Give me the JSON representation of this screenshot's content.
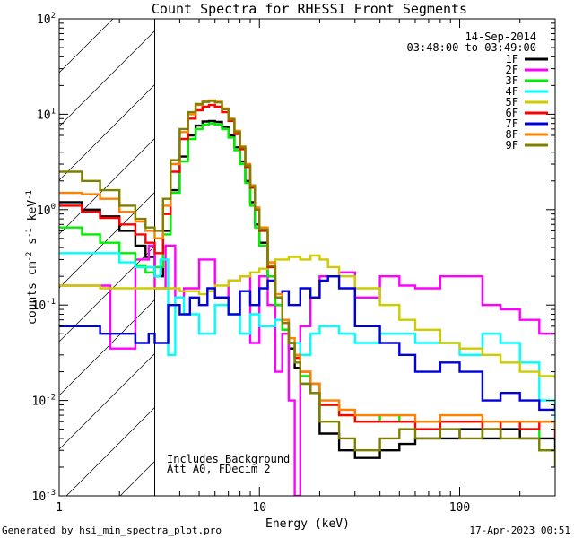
{
  "chart_data": {
    "type": "line",
    "title": "Count Spectra for RHESSI Front Segments",
    "xlabel": "Energy (keV)",
    "ylabel": "counts cm",
    "ylabel_sup1": "-2",
    "ylabel_mid": " s",
    "ylabel_sup2": "-1",
    "ylabel_end": " keV",
    "ylabel_sup3": "-1",
    "xscale": "log",
    "yscale": "log",
    "xlim": [
      1,
      300
    ],
    "ylim": [
      0.001,
      100
    ],
    "x_ticks": [
      {
        "v": 1,
        "label": "1"
      },
      {
        "v": 10,
        "label": "10"
      },
      {
        "v": 100,
        "label": "100"
      }
    ],
    "y_ticks": [
      {
        "v": 0.001,
        "base": "10",
        "exp": "-3"
      },
      {
        "v": 0.01,
        "base": "10",
        "exp": "-2"
      },
      {
        "v": 0.1,
        "base": "10",
        "exp": "-1"
      },
      {
        "v": 1,
        "base": "10",
        "exp": "0"
      },
      {
        "v": 10,
        "base": "10",
        "exp": "1"
      },
      {
        "v": 100,
        "base": "10",
        "exp": "2"
      }
    ],
    "hatched_region_keV": [
      1,
      3
    ],
    "date": "14-Sep-2014",
    "time_range": "03:48:00 to 03:49:00",
    "notes": [
      "Includes Background",
      "Att A0, FDecim 2"
    ],
    "footer_left": "Generated by hsi_min_spectra_plot.pro",
    "footer_right": "17-Apr-2023 00:51",
    "series": [
      {
        "name": "1F",
        "color": "#000000",
        "x": [
          1,
          1.3,
          1.6,
          2,
          2.4,
          2.7,
          3,
          3.3,
          3.6,
          4,
          4.4,
          4.8,
          5.2,
          5.6,
          6,
          6.5,
          7,
          7.5,
          8,
          8.5,
          9,
          9.5,
          10,
          11,
          12,
          13,
          14,
          15,
          16,
          18,
          20,
          25,
          30,
          40,
          50,
          60,
          80,
          100,
          130,
          160,
          200,
          250,
          300
        ],
        "y": [
          1.2,
          1,
          0.85,
          0.6,
          0.42,
          0.32,
          0.2,
          0.6,
          1.6,
          3.6,
          6,
          7.6,
          8.4,
          8.5,
          8.3,
          7.4,
          6,
          4.5,
          3.2,
          2,
          1.2,
          0.7,
          0.45,
          0.2,
          0.1,
          0.055,
          0.035,
          0.022,
          0.015,
          0.012,
          0.0045,
          0.003,
          0.0025,
          0.003,
          0.0035,
          0.004,
          0.004,
          0.005,
          0.004,
          0.005,
          0.004,
          0.004,
          0.003
        ]
      },
      {
        "name": "2F",
        "color": "#ff00ff",
        "x": [
          1,
          1.5,
          1.8,
          2,
          2.4,
          2.8,
          3,
          3.4,
          3.8,
          4.2,
          5,
          6,
          7,
          8,
          9,
          10,
          11,
          12,
          13,
          14,
          15,
          16,
          18,
          20,
          25,
          30,
          40,
          50,
          60,
          80,
          100,
          130,
          160,
          200,
          250,
          300
        ],
        "y": [
          0.16,
          0.16,
          0.035,
          0.035,
          0.3,
          0.42,
          0.15,
          0.42,
          0.12,
          0.15,
          0.3,
          0.12,
          0.18,
          0.2,
          0.04,
          0.2,
          0.1,
          0.02,
          0.05,
          0.01,
          0.001,
          0.06,
          0.12,
          0.2,
          0.22,
          0.12,
          0.2,
          0.16,
          0.15,
          0.2,
          0.2,
          0.1,
          0.09,
          0.07,
          0.05,
          0.05
        ]
      },
      {
        "name": "3F",
        "color": "#00ee00",
        "x": [
          1,
          1.3,
          1.6,
          2,
          2.4,
          2.7,
          3,
          3.3,
          3.6,
          4,
          4.4,
          4.8,
          5.2,
          5.6,
          6,
          6.5,
          7,
          7.5,
          8,
          8.5,
          9,
          9.5,
          10,
          11,
          12,
          13,
          14,
          15,
          16,
          18,
          20,
          25,
          30,
          40,
          50,
          60,
          80,
          100,
          130,
          160,
          200,
          250,
          300
        ],
        "y": [
          0.65,
          0.55,
          0.45,
          0.35,
          0.26,
          0.22,
          0.25,
          0.55,
          1.5,
          3.2,
          5.5,
          7,
          7.8,
          8,
          7.8,
          7,
          5.7,
          4.2,
          3,
          1.9,
          1.1,
          0.65,
          0.42,
          0.2,
          0.1,
          0.055,
          0.04,
          0.028,
          0.018,
          0.015,
          0.009,
          0.007,
          0.006,
          0.007,
          0.006,
          0.006,
          0.006,
          0.006,
          0.005,
          0.006,
          0.005,
          0.003,
          0.003
        ]
      },
      {
        "name": "4F",
        "color": "#00ffff",
        "x": [
          1,
          1.3,
          1.6,
          2,
          2.4,
          2.8,
          3,
          3.2,
          3.5,
          3.8,
          4.2,
          5,
          6,
          7,
          8,
          9,
          10,
          12,
          14,
          16,
          18,
          20,
          25,
          30,
          40,
          50,
          60,
          80,
          100,
          130,
          160,
          200,
          250,
          300
        ],
        "y": [
          0.35,
          0.35,
          0.35,
          0.28,
          0.25,
          0.25,
          0.2,
          0.3,
          0.03,
          0.12,
          0.08,
          0.05,
          0.1,
          0.08,
          0.05,
          0.08,
          0.06,
          0.07,
          0.04,
          0.03,
          0.05,
          0.06,
          0.05,
          0.04,
          0.05,
          0.05,
          0.04,
          0.04,
          0.03,
          0.05,
          0.04,
          0.025,
          0.01,
          0.004
        ]
      },
      {
        "name": "5F",
        "color": "#cccc00",
        "x": [
          1,
          1.3,
          1.6,
          2,
          2.4,
          2.8,
          3,
          3.5,
          4,
          4.5,
          5,
          5.5,
          6,
          7,
          8,
          9,
          10,
          11,
          12,
          14,
          16,
          18,
          20,
          22,
          25,
          30,
          40,
          50,
          60,
          80,
          100,
          130,
          160,
          200,
          250,
          300
        ],
        "y": [
          0.16,
          0.16,
          0.15,
          0.15,
          0.15,
          0.15,
          0.15,
          0.15,
          0.14,
          0.14,
          0.13,
          0.14,
          0.16,
          0.18,
          0.2,
          0.22,
          0.24,
          0.28,
          0.3,
          0.32,
          0.3,
          0.33,
          0.3,
          0.25,
          0.2,
          0.15,
          0.1,
          0.07,
          0.055,
          0.04,
          0.035,
          0.03,
          0.025,
          0.02,
          0.018,
          0.017
        ]
      },
      {
        "name": "6F",
        "color": "#ff0000",
        "x": [
          1,
          1.3,
          1.6,
          2,
          2.4,
          2.7,
          3,
          3.3,
          3.6,
          4,
          4.4,
          4.8,
          5.2,
          5.6,
          6,
          6.5,
          7,
          7.5,
          8,
          8.5,
          9,
          9.5,
          10,
          11,
          12,
          13,
          14,
          15,
          16,
          18,
          20,
          25,
          30,
          40,
          50,
          60,
          80,
          100,
          130,
          160,
          200,
          250,
          300
        ],
        "y": [
          1.1,
          0.95,
          0.82,
          0.7,
          0.55,
          0.45,
          0.35,
          0.9,
          2.5,
          5.5,
          9,
          11,
          12,
          12.5,
          12,
          10.5,
          8.5,
          6.2,
          4.3,
          2.8,
          1.7,
          1,
          0.6,
          0.25,
          0.12,
          0.065,
          0.04,
          0.028,
          0.02,
          0.015,
          0.009,
          0.007,
          0.006,
          0.006,
          0.006,
          0.005,
          0.006,
          0.006,
          0.005,
          0.006,
          0.005,
          0.006,
          0.004
        ]
      },
      {
        "name": "7F",
        "color": "#0000dd",
        "x": [
          1,
          1.3,
          1.6,
          2,
          2.4,
          2.8,
          3,
          3.5,
          4,
          4.5,
          5,
          5.5,
          6,
          7,
          8,
          9,
          10,
          11,
          12,
          13,
          14,
          16,
          18,
          20,
          22,
          25,
          30,
          40,
          50,
          60,
          80,
          100,
          130,
          160,
          200,
          250,
          300
        ],
        "y": [
          0.06,
          0.06,
          0.05,
          0.05,
          0.04,
          0.05,
          0.04,
          0.1,
          0.08,
          0.12,
          0.1,
          0.15,
          0.12,
          0.08,
          0.14,
          0.1,
          0.15,
          0.18,
          0.12,
          0.14,
          0.1,
          0.15,
          0.12,
          0.18,
          0.2,
          0.15,
          0.06,
          0.04,
          0.03,
          0.02,
          0.025,
          0.02,
          0.01,
          0.012,
          0.01,
          0.008,
          0.009
        ]
      },
      {
        "name": "8F",
        "color": "#ff7f00",
        "x": [
          1,
          1.3,
          1.6,
          2,
          2.4,
          2.7,
          3,
          3.3,
          3.6,
          4,
          4.4,
          4.8,
          5.2,
          5.6,
          6,
          6.5,
          7,
          7.5,
          8,
          8.5,
          9,
          9.5,
          10,
          11,
          12,
          13,
          14,
          15,
          16,
          18,
          20,
          25,
          30,
          40,
          50,
          60,
          80,
          100,
          130,
          160,
          200,
          250,
          300
        ],
        "y": [
          1.5,
          1.45,
          1.3,
          0.95,
          0.75,
          0.6,
          0.5,
          1.1,
          3,
          6.5,
          10,
          12.5,
          13.5,
          14,
          13.5,
          11.5,
          9,
          6.7,
          4.6,
          3,
          1.8,
          1.05,
          0.65,
          0.28,
          0.13,
          0.07,
          0.045,
          0.03,
          0.02,
          0.015,
          0.01,
          0.008,
          0.007,
          0.007,
          0.007,
          0.006,
          0.007,
          0.007,
          0.006,
          0.006,
          0.006,
          0.006,
          0.005
        ]
      },
      {
        "name": "9F",
        "color": "#808000",
        "x": [
          1,
          1.3,
          1.6,
          2,
          2.4,
          2.7,
          3,
          3.3,
          3.6,
          4,
          4.4,
          4.8,
          5.2,
          5.6,
          6,
          6.5,
          7,
          7.5,
          8,
          8.5,
          9,
          9.5,
          10,
          11,
          12,
          13,
          14,
          15,
          16,
          18,
          20,
          25,
          30,
          40,
          50,
          60,
          80,
          100,
          130,
          160,
          200,
          250,
          300
        ],
        "y": [
          2.5,
          2,
          1.6,
          1.1,
          0.8,
          0.65,
          0.6,
          1.3,
          3.3,
          7,
          10.5,
          12.8,
          13.5,
          13.8,
          13.3,
          11.3,
          8.8,
          6.5,
          4.5,
          2.9,
          1.75,
          1,
          0.62,
          0.26,
          0.12,
          0.065,
          0.04,
          0.025,
          0.015,
          0.012,
          0.006,
          0.004,
          0.003,
          0.004,
          0.005,
          0.004,
          0.005,
          0.004,
          0.005,
          0.004,
          0.004,
          0.003,
          0.002
        ]
      }
    ]
  }
}
